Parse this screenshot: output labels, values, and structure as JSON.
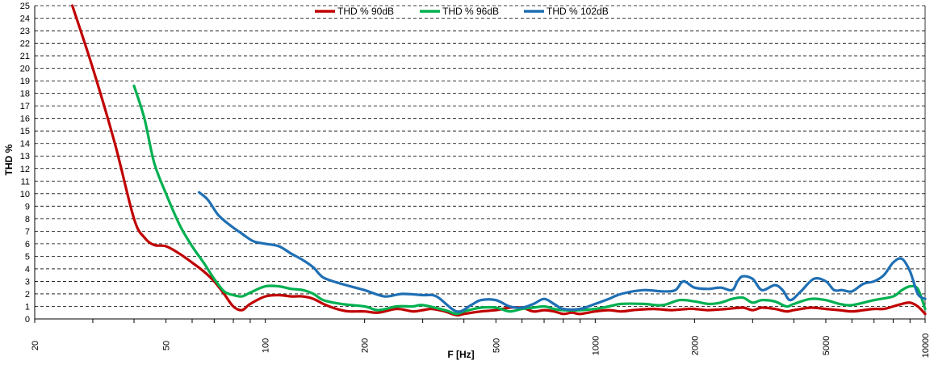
{
  "chart_data": {
    "type": "line",
    "title": "",
    "xlabel": "F [Hz]",
    "ylabel": "THD %",
    "xscale": "log",
    "xlim": [
      20,
      10000
    ],
    "ylim": [
      0,
      25
    ],
    "grid": "horizontal dashed",
    "legend_position": "top",
    "x_ticks": [
      "20",
      "50",
      "100",
      "200",
      "500",
      "1000",
      "2000",
      "5000",
      "10000"
    ],
    "y_ticks": [
      "0",
      "1",
      "2",
      "3",
      "4",
      "5",
      "6",
      "7",
      "8",
      "9",
      "10",
      "11",
      "12",
      "13",
      "14",
      "15",
      "16",
      "17",
      "18",
      "19",
      "20",
      "21",
      "22",
      "23",
      "24",
      "25"
    ],
    "series": [
      {
        "name": "THD % 90dB",
        "color": "#c00000",
        "x": [
          26,
          30,
          35,
          40,
          43,
          46,
          50,
          55,
          60,
          65,
          70,
          75,
          80,
          85,
          90,
          100,
          110,
          120,
          130,
          140,
          150,
          160,
          170,
          180,
          200,
          220,
          250,
          280,
          300,
          320,
          350,
          380,
          400,
          450,
          500,
          550,
          600,
          650,
          700,
          750,
          800,
          850,
          900,
          1000,
          1100,
          1200,
          1300,
          1500,
          1700,
          1900,
          2000,
          2200,
          2500,
          2800,
          3000,
          3200,
          3500,
          3800,
          4000,
          4500,
          5000,
          5500,
          6000,
          6500,
          7000,
          7500,
          8000,
          8500,
          9000,
          9500,
          10000
        ],
        "y": [
          25,
          20,
          14,
          8,
          6.5,
          5.9,
          5.8,
          5.2,
          4.5,
          3.8,
          3.0,
          2.0,
          1.0,
          0.7,
          1.2,
          1.8,
          1.9,
          1.8,
          1.8,
          1.6,
          1.2,
          0.9,
          0.7,
          0.6,
          0.6,
          0.5,
          0.8,
          0.6,
          0.7,
          0.8,
          0.6,
          0.3,
          0.4,
          0.6,
          0.7,
          0.9,
          0.9,
          0.6,
          0.7,
          0.6,
          0.4,
          0.5,
          0.4,
          0.6,
          0.7,
          0.6,
          0.7,
          0.8,
          0.7,
          0.8,
          0.8,
          0.7,
          0.8,
          0.9,
          0.7,
          0.9,
          0.8,
          0.6,
          0.7,
          0.9,
          0.8,
          0.7,
          0.6,
          0.7,
          0.8,
          0.8,
          1.0,
          1.2,
          1.3,
          1.0,
          0.4
        ]
      },
      {
        "name": "THD % 96dB",
        "color": "#00b050",
        "x": [
          40,
          43,
          46,
          50,
          55,
          60,
          65,
          70,
          75,
          80,
          85,
          90,
          100,
          110,
          120,
          130,
          140,
          150,
          170,
          200,
          220,
          250,
          280,
          300,
          350,
          380,
          400,
          450,
          500,
          550,
          600,
          650,
          700,
          750,
          800,
          900,
          1000,
          1100,
          1200,
          1400,
          1600,
          1800,
          2000,
          2200,
          2400,
          2600,
          2800,
          3000,
          3200,
          3500,
          3800,
          4000,
          4500,
          5000,
          5500,
          6000,
          7000,
          8000,
          8500,
          9000,
          9500,
          10000
        ],
        "y": [
          18.6,
          16,
          12.5,
          10,
          7.5,
          5.8,
          4.5,
          3.2,
          2.2,
          1.9,
          1.8,
          2.1,
          2.6,
          2.6,
          2.4,
          2.3,
          2.0,
          1.5,
          1.2,
          1.0,
          0.7,
          1.0,
          1.0,
          1.1,
          0.7,
          0.4,
          0.6,
          0.9,
          0.9,
          0.6,
          0.8,
          0.9,
          1.0,
          0.8,
          0.7,
          0.7,
          0.8,
          1.0,
          1.2,
          1.2,
          1.1,
          1.5,
          1.4,
          1.2,
          1.3,
          1.6,
          1.7,
          1.3,
          1.5,
          1.4,
          1.0,
          1.2,
          1.6,
          1.5,
          1.2,
          1.1,
          1.5,
          1.8,
          2.3,
          2.6,
          2.4,
          0.8
        ]
      },
      {
        "name": "THD % 102dB",
        "color": "#1f6fb4",
        "x": [
          63,
          67,
          72,
          78,
          85,
          92,
          100,
          110,
          120,
          130,
          140,
          150,
          170,
          200,
          230,
          260,
          300,
          330,
          380,
          420,
          450,
          500,
          550,
          600,
          650,
          700,
          750,
          800,
          900,
          1000,
          1100,
          1200,
          1400,
          1600,
          1750,
          1850,
          2000,
          2200,
          2400,
          2600,
          2700,
          2800,
          3000,
          3200,
          3500,
          3700,
          3900,
          4200,
          4600,
          5000,
          5300,
          5600,
          6000,
          6500,
          7000,
          7500,
          8000,
          8500,
          9000,
          9500,
          10000
        ],
        "y": [
          10.1,
          9.5,
          8.3,
          7.5,
          6.8,
          6.2,
          6.0,
          5.8,
          5.2,
          4.7,
          4.1,
          3.3,
          2.8,
          2.3,
          1.8,
          2.0,
          1.9,
          1.8,
          0.6,
          1.1,
          1.5,
          1.5,
          1.0,
          0.9,
          1.2,
          1.6,
          1.2,
          0.8,
          0.8,
          1.2,
          1.6,
          2.0,
          2.3,
          2.2,
          2.3,
          3.0,
          2.5,
          2.4,
          2.5,
          2.3,
          3.0,
          3.4,
          3.2,
          2.3,
          2.7,
          2.3,
          1.5,
          2.2,
          3.2,
          3.0,
          2.3,
          2.3,
          2.2,
          2.8,
          3.0,
          3.5,
          4.5,
          4.8,
          3.8,
          2.0,
          1.6
        ]
      }
    ]
  }
}
